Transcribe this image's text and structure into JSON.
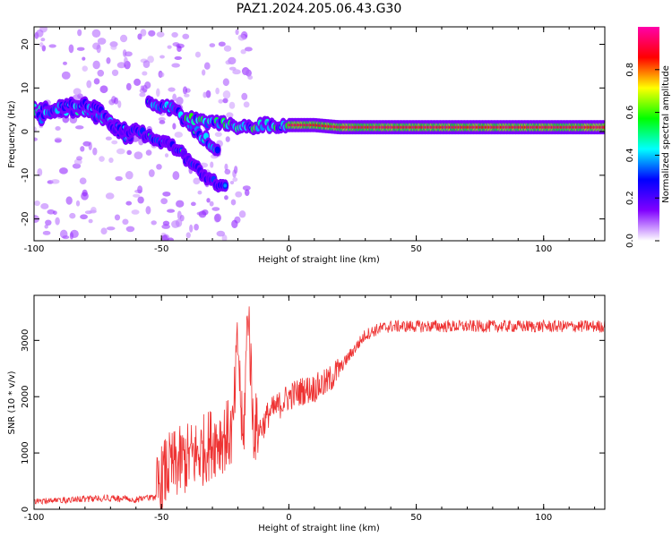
{
  "title": "PAZ1.2024.205.06.43.G30",
  "chart_data": [
    {
      "type": "heatmap",
      "xlabel": "Height of straight line (km)",
      "ylabel": "Frequency (Hz)",
      "xlim": [
        -100,
        124
      ],
      "ylim": [
        -25,
        24
      ],
      "xticks": [
        -100,
        -50,
        0,
        50,
        100
      ],
      "yticks": [
        -20,
        -10,
        0,
        10,
        20
      ],
      "colorbar": {
        "label": "Normalized spectral amplitude",
        "range": [
          0,
          1
        ],
        "ticks": [
          0.0,
          0.2,
          0.4,
          0.6,
          0.8
        ],
        "colormap": [
          "#ffffff",
          "#8000ff",
          "#0000ff",
          "#00ffff",
          "#00ff00",
          "#ffff00",
          "#ff0000",
          "#ff00aa"
        ]
      },
      "ridges": [
        {
          "x": [
            -100,
            -90,
            -80,
            -70,
            -62
          ],
          "y": [
            5,
            5,
            5,
            2,
            -2
          ],
          "peak": 0.3
        },
        {
          "x": [
            -98,
            -88,
            -78,
            -70
          ],
          "y": [
            3,
            6,
            6,
            3
          ],
          "peak": 0.25
        },
        {
          "x": [
            -55,
            -45,
            -38,
            -32,
            -28
          ],
          "y": [
            7,
            5,
            1,
            -2,
            -4
          ],
          "peak": 0.25
        },
        {
          "x": [
            -70,
            -60,
            -50,
            -42,
            -35,
            -28,
            -25
          ],
          "y": [
            1,
            0,
            -2,
            -5,
            -9,
            -12,
            -13
          ],
          "peak": 0.15
        },
        {
          "x": [
            -40,
            -30,
            -22,
            -15,
            -10,
            0
          ],
          "y": [
            3,
            2,
            1.5,
            1,
            1.5,
            1.5
          ],
          "peak": 0.45
        },
        {
          "x": [
            0,
            10,
            20,
            40,
            60,
            80,
            100,
            124
          ],
          "y": [
            1.5,
            1.5,
            1,
            1,
            1,
            1,
            1,
            1
          ],
          "peak": 0.95
        }
      ]
    },
    {
      "type": "line",
      "xlabel": "Height of straight line (km)",
      "ylabel": "SNR (10 * v/v)",
      "xlim": [
        -100,
        124
      ],
      "ylim": [
        0,
        3800
      ],
      "xticks": [
        -100,
        -50,
        0,
        50,
        100
      ],
      "yticks": [
        0,
        1000,
        2000,
        3000
      ],
      "color": "#ee3333",
      "series": [
        {
          "x": [
            -100,
            -90,
            -80,
            -70,
            -60,
            -52,
            -48,
            -44,
            -40,
            -35,
            -30,
            -25,
            -22,
            -20,
            -18,
            -16,
            -14,
            -12,
            -10,
            -8,
            -5,
            0,
            5,
            10,
            15,
            20,
            25,
            30,
            35,
            40,
            50,
            60,
            70,
            80,
            90,
            100,
            110,
            124
          ],
          "y": [
            150,
            200,
            250,
            280,
            220,
            300,
            700,
            800,
            900,
            1000,
            1200,
            1300,
            1350,
            3000,
            1000,
            3700,
            1500,
            1400,
            1500,
            1700,
            1800,
            2000,
            2100,
            2150,
            2250,
            2500,
            2800,
            3100,
            3200,
            3250,
            3250,
            3250,
            3250,
            3250,
            3250,
            3250,
            3250,
            3250
          ]
        }
      ]
    }
  ]
}
